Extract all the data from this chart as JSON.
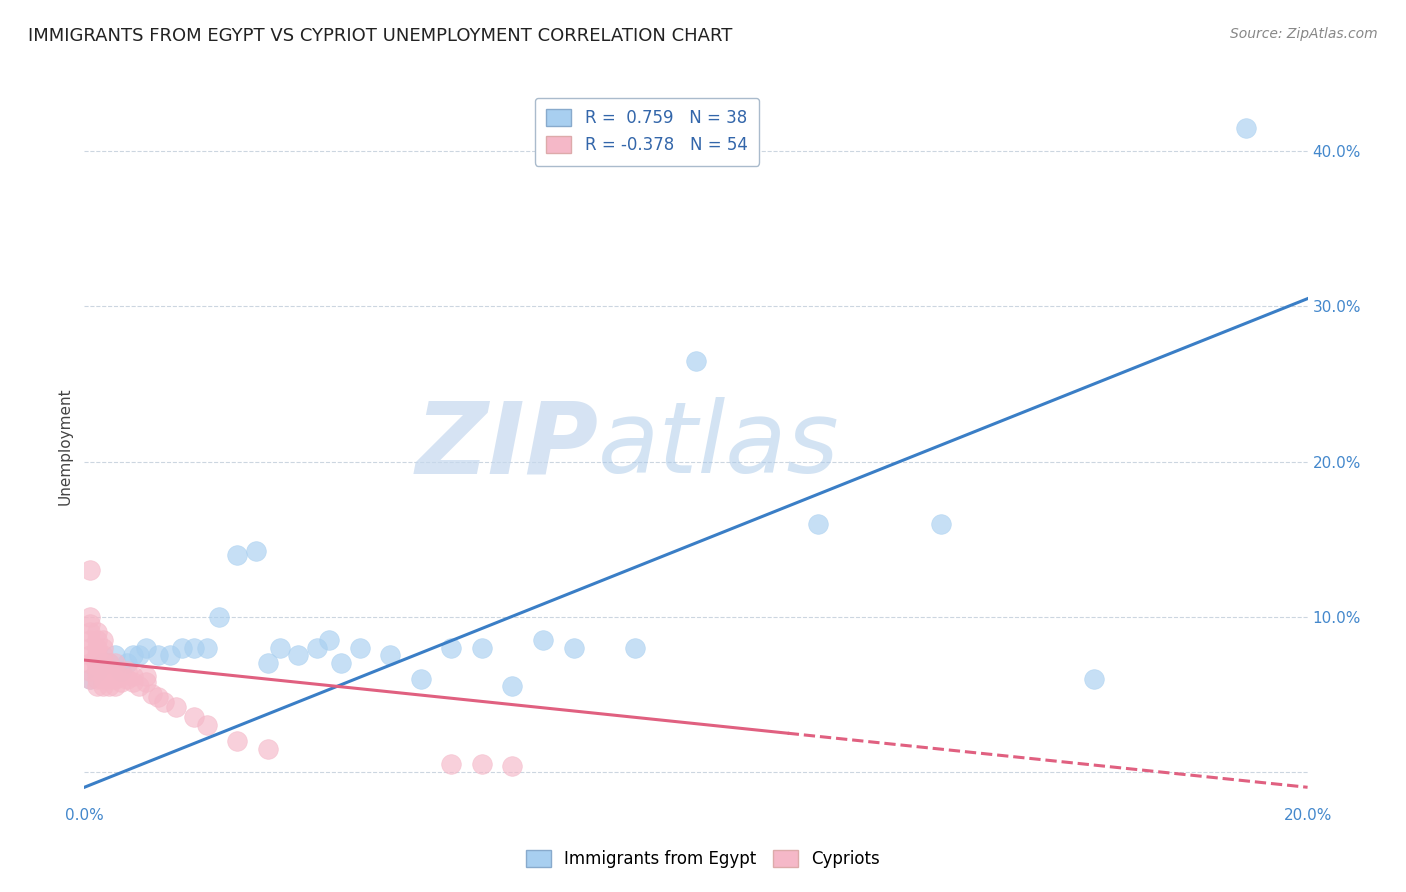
{
  "title": "IMMIGRANTS FROM EGYPT VS CYPRIOT UNEMPLOYMENT CORRELATION CHART",
  "source_text": "Source: ZipAtlas.com",
  "ylabel": "Unemployment",
  "xlim": [
    0.0,
    0.2
  ],
  "ylim": [
    -0.02,
    0.44
  ],
  "xticks": [
    0.0,
    0.04,
    0.08,
    0.12,
    0.16,
    0.2
  ],
  "xticklabels": [
    "0.0%",
    "",
    "",
    "",
    "",
    "20.0%"
  ],
  "ytick_positions": [
    0.0,
    0.1,
    0.2,
    0.3,
    0.4
  ],
  "ytick_labels": [
    "",
    "10.0%",
    "20.0%",
    "30.0%",
    "40.0%"
  ],
  "blue_R": 0.759,
  "blue_N": 38,
  "pink_R": -0.378,
  "pink_N": 54,
  "blue_color": "#A8CFF0",
  "pink_color": "#F5B8C8",
  "blue_line_color": "#3A7EC6",
  "pink_line_color": "#E06080",
  "watermark_ZIP": "ZIP",
  "watermark_atlas": "atlas",
  "legend_label_blue": "Immigrants from Egypt",
  "legend_label_pink": "Cypriots",
  "blue_scatter_x": [
    0.001,
    0.002,
    0.003,
    0.004,
    0.005,
    0.006,
    0.007,
    0.008,
    0.009,
    0.01,
    0.012,
    0.014,
    0.016,
    0.018,
    0.02,
    0.022,
    0.025,
    0.028,
    0.03,
    0.032,
    0.035,
    0.038,
    0.04,
    0.042,
    0.045,
    0.05,
    0.055,
    0.06,
    0.065,
    0.07,
    0.075,
    0.08,
    0.09,
    0.1,
    0.12,
    0.14,
    0.165,
    0.19
  ],
  "blue_scatter_y": [
    0.06,
    0.065,
    0.07,
    0.07,
    0.075,
    0.065,
    0.07,
    0.075,
    0.075,
    0.08,
    0.075,
    0.075,
    0.08,
    0.08,
    0.08,
    0.1,
    0.14,
    0.142,
    0.07,
    0.08,
    0.075,
    0.08,
    0.085,
    0.07,
    0.08,
    0.075,
    0.06,
    0.08,
    0.08,
    0.055,
    0.085,
    0.08,
    0.08,
    0.265,
    0.16,
    0.16,
    0.06,
    0.415
  ],
  "pink_scatter_x": [
    0.001,
    0.001,
    0.001,
    0.001,
    0.001,
    0.001,
    0.001,
    0.001,
    0.001,
    0.001,
    0.002,
    0.002,
    0.002,
    0.002,
    0.002,
    0.002,
    0.002,
    0.002,
    0.002,
    0.003,
    0.003,
    0.003,
    0.003,
    0.003,
    0.003,
    0.003,
    0.004,
    0.004,
    0.004,
    0.004,
    0.005,
    0.005,
    0.005,
    0.005,
    0.006,
    0.006,
    0.007,
    0.007,
    0.008,
    0.008,
    0.009,
    0.01,
    0.01,
    0.011,
    0.012,
    0.013,
    0.015,
    0.018,
    0.02,
    0.025,
    0.03,
    0.06,
    0.065,
    0.07
  ],
  "pink_scatter_y": [
    0.06,
    0.065,
    0.07,
    0.075,
    0.08,
    0.085,
    0.09,
    0.095,
    0.1,
    0.13,
    0.055,
    0.06,
    0.065,
    0.068,
    0.07,
    0.075,
    0.08,
    0.085,
    0.09,
    0.055,
    0.06,
    0.065,
    0.07,
    0.075,
    0.08,
    0.085,
    0.055,
    0.06,
    0.065,
    0.07,
    0.055,
    0.06,
    0.065,
    0.07,
    0.058,
    0.062,
    0.06,
    0.065,
    0.058,
    0.062,
    0.055,
    0.058,
    0.062,
    0.05,
    0.048,
    0.045,
    0.042,
    0.035,
    0.03,
    0.02,
    0.015,
    0.005,
    0.005,
    0.004
  ],
  "blue_line_x0": 0.0,
  "blue_line_y0": -0.01,
  "blue_line_x1": 0.2,
  "blue_line_y1": 0.305,
  "pink_line_x0": 0.0,
  "pink_line_y0": 0.072,
  "pink_line_x1": 0.2,
  "pink_line_y1": -0.01
}
